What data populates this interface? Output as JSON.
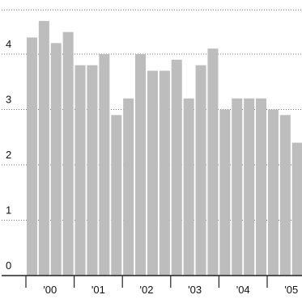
{
  "chart_data": {
    "type": "bar",
    "title": "",
    "xlabel": "",
    "ylabel": "",
    "ylim": [
      0,
      4.8
    ],
    "yticks": [
      0,
      1,
      2,
      3,
      4
    ],
    "grid": true,
    "legend": "none",
    "bar_color": "#bdbdbd",
    "values": [
      4.3,
      4.6,
      4.2,
      4.4,
      3.8,
      3.8,
      4.0,
      2.9,
      3.2,
      4.0,
      3.7,
      3.7,
      3.9,
      3.2,
      3.8,
      4.1,
      3.0,
      3.2,
      3.2,
      3.2,
      3.0,
      2.9,
      2.4
    ],
    "year_labels": [
      {
        "label": "'00",
        "start_index": 0
      },
      {
        "label": "'01",
        "start_index": 4
      },
      {
        "label": "'02",
        "start_index": 8
      },
      {
        "label": "'03",
        "start_index": 12
      },
      {
        "label": "'04",
        "start_index": 16
      },
      {
        "label": "'05",
        "start_index": 20
      }
    ]
  }
}
